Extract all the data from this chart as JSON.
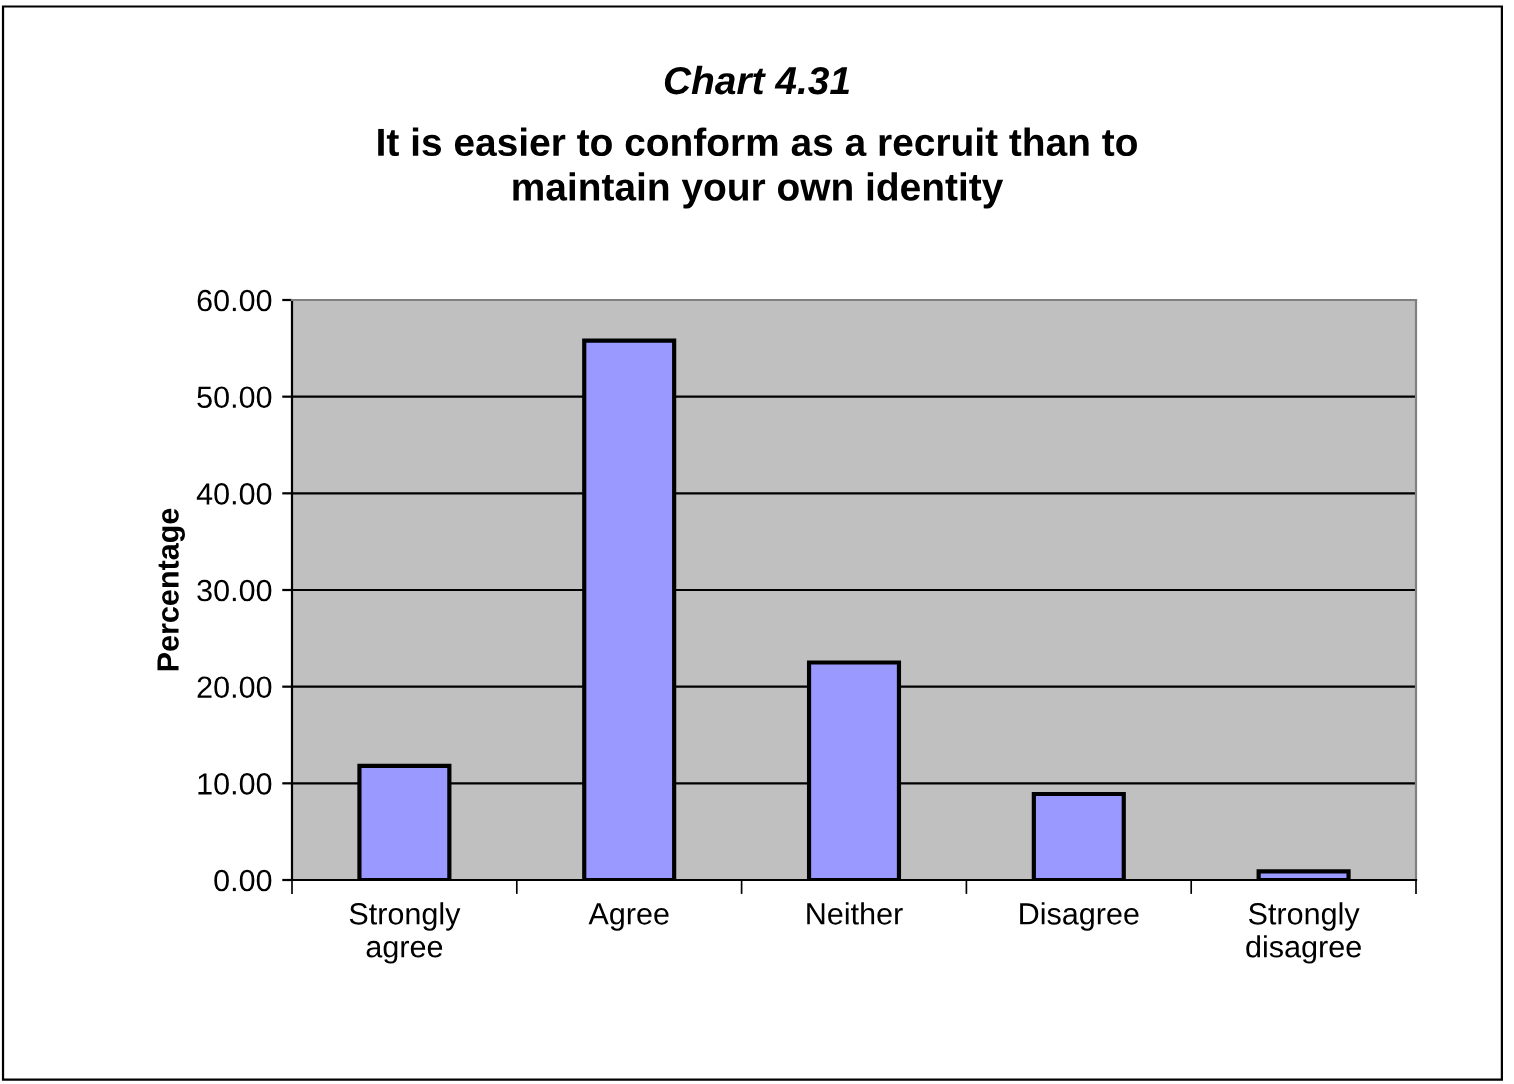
{
  "chart_data": {
    "type": "bar",
    "title": "Chart 4.31",
    "subtitle": "It is easier to conform as a recruit than to\nmaintain your own identity",
    "ylabel": "Percentage",
    "categories": [
      "Strongly\nagree",
      "Agree",
      "Neither",
      "Disagree",
      "Strongly\ndisagree"
    ],
    "values": [
      11.8,
      55.8,
      22.5,
      8.9,
      0.9
    ],
    "color": "#9999ff",
    "ylim": [
      0,
      60
    ],
    "yticks": [
      {
        "value": 0,
        "label": "0.00"
      },
      {
        "value": 10,
        "label": "10.00"
      },
      {
        "value": 20,
        "label": "20.00"
      },
      {
        "value": 30,
        "label": "30.00"
      },
      {
        "value": 40,
        "label": "40.00"
      },
      {
        "value": 50,
        "label": "50.00"
      },
      {
        "value": 60,
        "label": "60.00"
      }
    ],
    "grid": "y"
  }
}
